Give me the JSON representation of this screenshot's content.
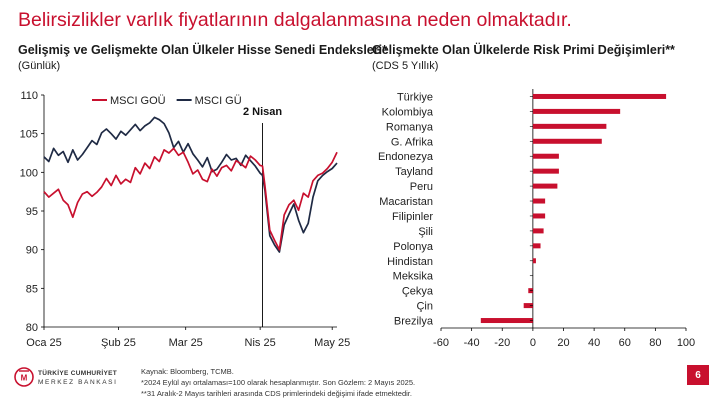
{
  "slide": {
    "title": "Belirsizlikler varlık fiyatlarının dalgalanmasına neden olmaktadır.",
    "page_number": "6",
    "logo": {
      "line1": "TÜRKİYE CUMHURİYET",
      "line2": "MERKEZ BANKASI"
    },
    "footnotes": [
      "Kaynak: Bloomberg, TCMB.",
      "*2024 Eylül ayı ortalaması=100 olarak hesaplanmıştır. Son Gözlem: 2 Mayıs 2025.",
      "**31 Aralık-2 Mayıs tarihleri arasında CDS primlerindeki değişimi ifade etmektedir."
    ],
    "colors": {
      "accent": "#c8102e",
      "dark_series": "#1f2a44"
    }
  },
  "chart_data": [
    {
      "type": "line",
      "title": "Gelişmiş ve Gelişmekte Olan Ülkeler Hisse Senedi Endeksleri*",
      "subtitle": "(Günlük)",
      "x_tick_labels": [
        "Oca 25",
        "Şub 25",
        "Mar 25",
        "Nis 25",
        "May 25"
      ],
      "x_tick_positions": [
        0,
        31,
        59,
        90,
        120
      ],
      "xlim": [
        0,
        122
      ],
      "ylim": [
        80,
        110
      ],
      "y_ticks": [
        80,
        85,
        90,
        95,
        100,
        105,
        110
      ],
      "grid": false,
      "legend_position": "top-left",
      "annotation": {
        "label": "2 Nisan",
        "x": 91
      },
      "series": [
        {
          "name": "MSCI GOÜ",
          "color": "#c8102e",
          "x": [
            0,
            2,
            4,
            6,
            8,
            10,
            12,
            14,
            16,
            18,
            20,
            22,
            24,
            26,
            28,
            30,
            32,
            34,
            36,
            38,
            40,
            42,
            44,
            46,
            48,
            50,
            52,
            54,
            56,
            58,
            60,
            62,
            64,
            66,
            68,
            70,
            72,
            74,
            76,
            78,
            80,
            82,
            84,
            86,
            88,
            90,
            91,
            92,
            94,
            96,
            98,
            100,
            102,
            104,
            106,
            108,
            110,
            112,
            114,
            116,
            118,
            120,
            122
          ],
          "y": [
            97.5,
            96.8,
            97.3,
            97.8,
            96.4,
            95.8,
            94.2,
            96.1,
            97.2,
            97.5,
            96.9,
            97.4,
            98.1,
            99.2,
            98.3,
            99.6,
            98.5,
            99.1,
            98.7,
            100.6,
            99.8,
            101.2,
            100.5,
            102.0,
            101.4,
            102.9,
            102.5,
            103.1,
            102.2,
            102.6,
            101.3,
            99.8,
            100.3,
            99.1,
            98.8,
            100.4,
            99.5,
            100.6,
            100.9,
            100.2,
            101.5,
            101.1,
            100.6,
            102.1,
            101.6,
            100.9,
            100.8,
            98.2,
            92.5,
            91.2,
            90.0,
            94.5,
            95.8,
            96.4,
            95.1,
            97.3,
            96.8,
            98.9,
            99.6,
            99.9,
            100.5,
            101.3,
            102.6
          ]
        },
        {
          "name": "MSCI GÜ",
          "color": "#1f2a44",
          "x": [
            0,
            2,
            4,
            6,
            8,
            10,
            12,
            14,
            16,
            18,
            20,
            22,
            24,
            26,
            28,
            30,
            32,
            34,
            36,
            38,
            40,
            42,
            44,
            46,
            48,
            50,
            52,
            54,
            56,
            58,
            60,
            62,
            64,
            66,
            68,
            70,
            72,
            74,
            76,
            78,
            80,
            82,
            84,
            86,
            88,
            90,
            91,
            92,
            94,
            96,
            98,
            100,
            102,
            104,
            106,
            108,
            110,
            112,
            114,
            116,
            118,
            120,
            122
          ],
          "y": [
            102.0,
            101.4,
            103.1,
            102.2,
            102.7,
            101.3,
            102.9,
            101.6,
            102.3,
            103.2,
            104.1,
            103.6,
            105.1,
            105.6,
            105.0,
            104.3,
            105.3,
            104.8,
            105.5,
            106.2,
            105.4,
            106.0,
            106.4,
            107.1,
            106.8,
            106.3,
            105.1,
            103.2,
            104.0,
            102.6,
            103.7,
            102.4,
            101.6,
            100.7,
            101.9,
            100.1,
            100.4,
            101.3,
            102.3,
            101.6,
            101.8,
            100.9,
            102.2,
            101.5,
            100.8,
            99.9,
            99.6,
            97.6,
            91.8,
            90.6,
            89.7,
            93.2,
            94.6,
            95.9,
            93.8,
            92.2,
            93.4,
            96.8,
            98.9,
            99.6,
            100.1,
            100.5,
            101.2
          ]
        }
      ]
    },
    {
      "type": "bar",
      "orientation": "horizontal",
      "title": "Gelişmekte Olan Ülkelerde Risk Primi Değişimleri**",
      "subtitle": "(CDS 5 Yıllık)",
      "categories": [
        "Türkiye",
        "Kolombiya",
        "Romanya",
        "G. Afrika",
        "Endonezya",
        "Tayland",
        "Peru",
        "Macaristan",
        "Filipinler",
        "Şili",
        "Polonya",
        "Hindistan",
        "Meksika",
        "Çekya",
        "Çin",
        "Brezilya"
      ],
      "values": [
        87,
        57,
        48,
        45,
        17,
        17,
        16,
        8,
        8,
        7,
        5,
        2,
        0,
        -3,
        -6,
        -34
      ],
      "xlim": [
        -60,
        100
      ],
      "x_ticks": [
        -60,
        -40,
        -20,
        0,
        20,
        40,
        60,
        80,
        100
      ],
      "grid": false,
      "color": "#c8102e"
    }
  ]
}
